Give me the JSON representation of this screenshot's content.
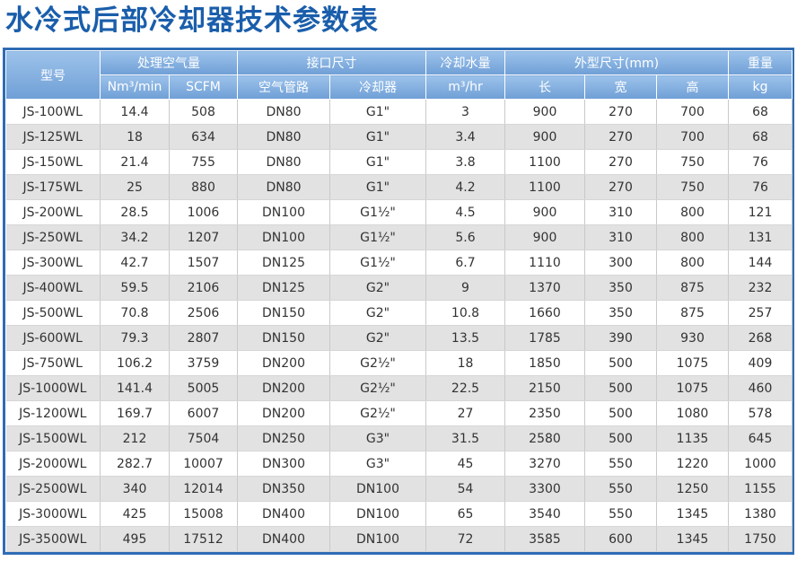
{
  "title": "水冷式后部冷却器技术参数表",
  "table": {
    "header_top": [
      "型号",
      "处理空气量",
      "接口尺寸",
      "冷却水量",
      "外型尺寸(mm)",
      "重量"
    ],
    "header_sub": [
      "Nm³/min",
      "SCFM",
      "空气管路",
      "冷却器",
      "m³/hr",
      "长",
      "宽",
      "高",
      "kg"
    ],
    "rows": [
      [
        "JS-100WL",
        14.4,
        508,
        "DN80",
        "G1\"",
        3,
        900,
        270,
        700,
        68
      ],
      [
        "JS-125WL",
        18,
        634,
        "DN80",
        "G1\"",
        3.4,
        900,
        270,
        700,
        68
      ],
      [
        "JS-150WL",
        21.4,
        755,
        "DN80",
        "G1\"",
        3.8,
        1100,
        270,
        750,
        76
      ],
      [
        "JS-175WL",
        25,
        880,
        "DN80",
        "G1\"",
        4.2,
        1100,
        270,
        750,
        76
      ],
      [
        "JS-200WL",
        28.5,
        1006,
        "DN100",
        "G1½\"",
        4.5,
        900,
        310,
        800,
        121
      ],
      [
        "JS-250WL",
        34.2,
        1207,
        "DN100",
        "G1½\"",
        5.6,
        900,
        310,
        800,
        131
      ],
      [
        "JS-300WL",
        42.7,
        1507,
        "DN125",
        "G1½\"",
        6.7,
        1110,
        300,
        800,
        144
      ],
      [
        "JS-400WL",
        59.5,
        2106,
        "DN125",
        "G2\"",
        9,
        1370,
        350,
        875,
        232
      ],
      [
        "JS-500WL",
        70.8,
        2506,
        "DN150",
        "G2\"",
        10.8,
        1660,
        350,
        875,
        257
      ],
      [
        "JS-600WL",
        79.3,
        2807,
        "DN150",
        "G2\"",
        13.5,
        1785,
        390,
        930,
        268
      ],
      [
        "JS-750WL",
        106.2,
        3759,
        "DN200",
        "G2½\"",
        18,
        1850,
        500,
        1075,
        409
      ],
      [
        "JS-1000WL",
        141.4,
        5005,
        "DN200",
        "G2½\"",
        22.5,
        2150,
        500,
        1075,
        460
      ],
      [
        "JS-1200WL",
        169.7,
        6007,
        "DN200",
        "G2½\"",
        27,
        2350,
        500,
        1080,
        578
      ],
      [
        "JS-1500WL",
        212,
        7504,
        "DN250",
        "G3\"",
        31.5,
        2580,
        500,
        1135,
        645
      ],
      [
        "JS-2000WL",
        282.7,
        10007,
        "DN300",
        "G3\"",
        45,
        3270,
        550,
        1220,
        1000
      ],
      [
        "JS-2500WL",
        340,
        12014,
        "DN350",
        "DN100",
        54,
        3300,
        550,
        1250,
        1155
      ],
      [
        "JS-3000WL",
        425,
        15008,
        "DN400",
        "DN100",
        65,
        3540,
        550,
        1345,
        1380
      ],
      [
        "JS-3500WL",
        495,
        17512,
        "DN400",
        "DN100",
        72,
        3585,
        600,
        1345,
        1750
      ]
    ]
  }
}
